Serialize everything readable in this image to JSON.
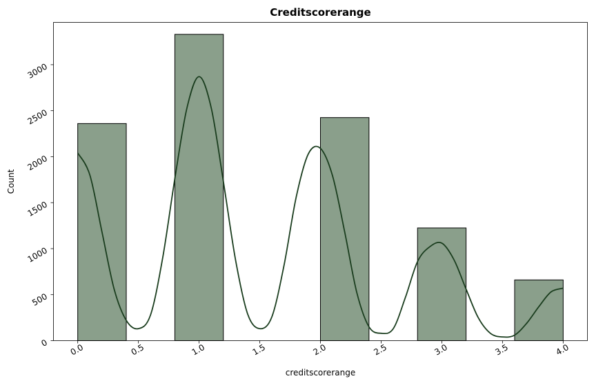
{
  "chart_data": {
    "type": "bar",
    "title": "Creditscorerange",
    "xlabel": "creditscorerange",
    "ylabel": "Count",
    "xlim": [
      -0.2,
      4.2
    ],
    "ylim": [
      0,
      3460
    ],
    "x_ticks": [
      0.0,
      0.5,
      1.0,
      1.5,
      2.0,
      2.5,
      3.0,
      3.5,
      4.0
    ],
    "x_tick_labels": [
      "0.0",
      "0.5",
      "1.0",
      "1.5",
      "2.0",
      "2.5",
      "3.0",
      "3.5",
      "4.0"
    ],
    "y_ticks": [
      0,
      500,
      1000,
      1500,
      2000,
      2500,
      3000
    ],
    "y_tick_labels": [
      "0",
      "500",
      "1000",
      "1500",
      "2000",
      "2500",
      "3000"
    ],
    "bins": [
      {
        "x0": 0.0,
        "x1": 0.4,
        "count": 2360
      },
      {
        "x0": 0.8,
        "x1": 1.2,
        "count": 3330
      },
      {
        "x0": 2.0,
        "x1": 2.4,
        "count": 2425
      },
      {
        "x0": 2.8,
        "x1": 3.2,
        "count": 1225
      },
      {
        "x0": 3.6,
        "x1": 4.0,
        "count": 660
      }
    ],
    "kde": {
      "x": [
        0.0,
        0.1,
        0.2,
        0.3,
        0.4,
        0.5,
        0.6,
        0.7,
        0.8,
        0.9,
        1.0,
        1.1,
        1.2,
        1.3,
        1.4,
        1.5,
        1.6,
        1.7,
        1.8,
        1.9,
        2.0,
        2.1,
        2.2,
        2.3,
        2.4,
        2.5,
        2.6,
        2.7,
        2.8,
        2.9,
        3.0,
        3.1,
        3.2,
        3.3,
        3.4,
        3.5,
        3.6,
        3.7,
        3.8,
        3.9,
        4.0
      ],
      "y": [
        2040,
        1800,
        1180,
        560,
        220,
        130,
        280,
        900,
        1760,
        2530,
        2870,
        2530,
        1730,
        880,
        290,
        130,
        260,
        820,
        1560,
        2030,
        2090,
        1790,
        1180,
        520,
        150,
        80,
        130,
        470,
        860,
        1020,
        1060,
        880,
        560,
        250,
        80,
        40,
        60,
        190,
        370,
        530,
        570
      ]
    },
    "colors": {
      "bar_fill": "#8a9f8b",
      "bar_edge": "#000000",
      "kde_line": "#1a3d1e"
    },
    "grid": false,
    "legend": "none"
  }
}
